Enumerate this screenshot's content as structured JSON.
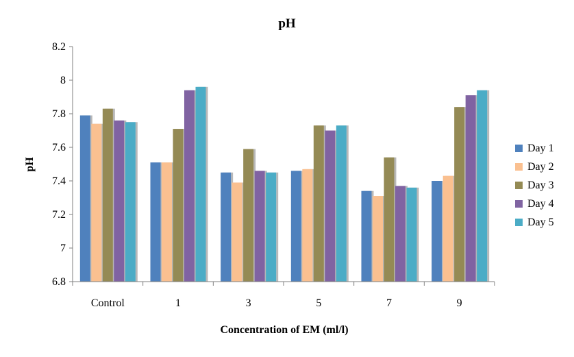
{
  "chart_data": {
    "type": "bar",
    "title": "pH",
    "xlabel": "Concentration of EM (ml/l)",
    "ylabel": "pH",
    "ylim": [
      6.8,
      8.2
    ],
    "yticks": [
      "6.8",
      "7",
      "7.2",
      "7.4",
      "7.6",
      "7.8",
      "8",
      "8.2"
    ],
    "categories": [
      "Control",
      "1",
      "3",
      "5",
      "7",
      "9"
    ],
    "series": [
      {
        "name": "Day 1",
        "color": "#4F81BD",
        "values": [
          7.79,
          7.51,
          7.45,
          7.46,
          7.34,
          7.4
        ]
      },
      {
        "name": "Day 2",
        "color": "#FAC090",
        "values": [
          7.74,
          7.51,
          7.39,
          7.47,
          7.31,
          7.43
        ]
      },
      {
        "name": "Day 3",
        "color": "#948A54",
        "values": [
          7.83,
          7.71,
          7.59,
          7.73,
          7.54,
          7.84
        ]
      },
      {
        "name": "Day 4",
        "color": "#8064A2",
        "values": [
          7.76,
          7.94,
          7.46,
          7.7,
          7.37,
          7.91
        ]
      },
      {
        "name": "Day 5",
        "color": "#4BACC6",
        "values": [
          7.75,
          7.96,
          7.45,
          7.73,
          7.36,
          7.94
        ]
      }
    ],
    "grid": false,
    "legend": "right"
  }
}
